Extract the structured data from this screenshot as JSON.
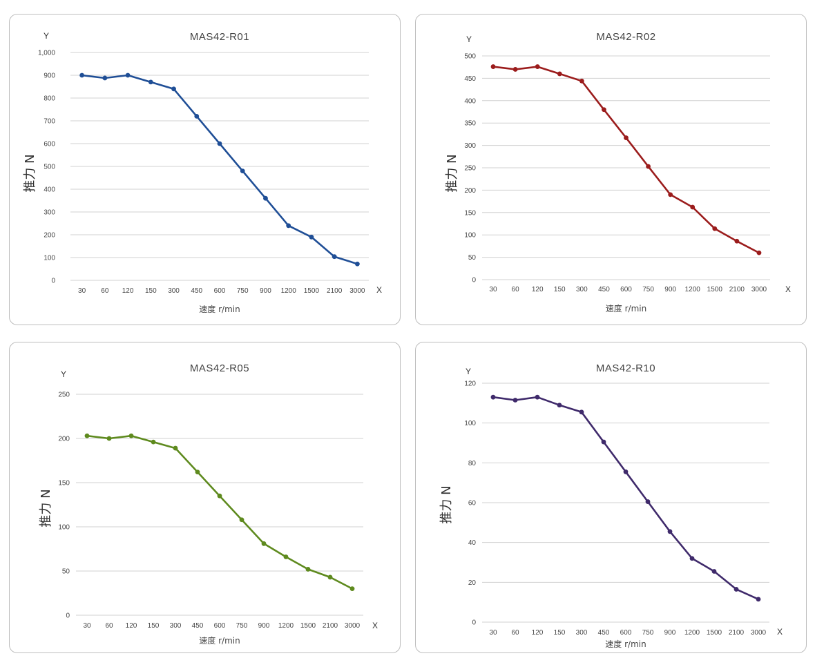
{
  "chart_data": [
    {
      "type": "line",
      "title": "MAS42-R01",
      "color": "#1F4E96",
      "xlabel": "速度 r/min",
      "ylabel": "推力 N",
      "x_axis_letter": "X",
      "y_axis_letter": "Y",
      "categories": [
        "30",
        "60",
        "120",
        "150",
        "300",
        "450",
        "600",
        "750",
        "900",
        "1200",
        "1500",
        "2100",
        "3000"
      ],
      "values": [
        900,
        888,
        900,
        870,
        840,
        720,
        600,
        480,
        360,
        240,
        190,
        104,
        72
      ],
      "ylim": [
        0,
        1000
      ],
      "yticks": [
        "0",
        "100",
        "200",
        "300",
        "400",
        "500",
        "600",
        "700",
        "800",
        "900",
        "1,000"
      ],
      "grid": true
    },
    {
      "type": "line",
      "title": "MAS42-R02",
      "color": "#9B1C1C",
      "xlabel": "速度 r/min",
      "ylabel": "推力 N",
      "x_axis_letter": "X",
      "y_axis_letter": "Y",
      "categories": [
        "30",
        "60",
        "120",
        "150",
        "300",
        "450",
        "600",
        "750",
        "900",
        "1200",
        "1500",
        "2100",
        "3000"
      ],
      "values": [
        476,
        470,
        476,
        460,
        444,
        380,
        317,
        253,
        190,
        162,
        114,
        86,
        60
      ],
      "ylim": [
        0,
        500
      ],
      "yticks": [
        "0",
        "50",
        "100",
        "150",
        "200",
        "250",
        "300",
        "350",
        "400",
        "450",
        "500"
      ],
      "grid": true
    },
    {
      "type": "line",
      "title": "MAS42-R05",
      "color": "#5E8A1E",
      "xlabel": "速度 r/min",
      "ylabel": "推力 N",
      "x_axis_letter": "X",
      "y_axis_letter": "Y",
      "categories": [
        "30",
        "60",
        "120",
        "150",
        "300",
        "450",
        "600",
        "750",
        "900",
        "1200",
        "1500",
        "2100",
        "3000"
      ],
      "values": [
        203,
        200,
        203,
        196,
        189,
        162,
        135,
        108,
        81,
        66,
        52,
        43,
        30
      ],
      "ylim": [
        0,
        250
      ],
      "yticks": [
        "0",
        "50",
        "100",
        "150",
        "200",
        "250"
      ],
      "grid": true
    },
    {
      "type": "line",
      "title": "MAS42-R10",
      "color": "#3F2A6B",
      "xlabel": "速度 r/min",
      "ylabel": "推力 N",
      "x_axis_letter": "X",
      "y_axis_letter": "Y",
      "categories": [
        "30",
        "60",
        "120",
        "150",
        "300",
        "450",
        "600",
        "750",
        "900",
        "1200",
        "1500",
        "2100",
        "3000"
      ],
      "values": [
        113,
        111.5,
        113,
        109,
        105.5,
        90.5,
        75.5,
        60.5,
        45.5,
        32,
        25.5,
        16.5,
        11.5
      ],
      "ylim": [
        0,
        120
      ],
      "yticks": [
        "0",
        "20",
        "40",
        "60",
        "80",
        "100",
        "120"
      ],
      "grid": true
    }
  ]
}
